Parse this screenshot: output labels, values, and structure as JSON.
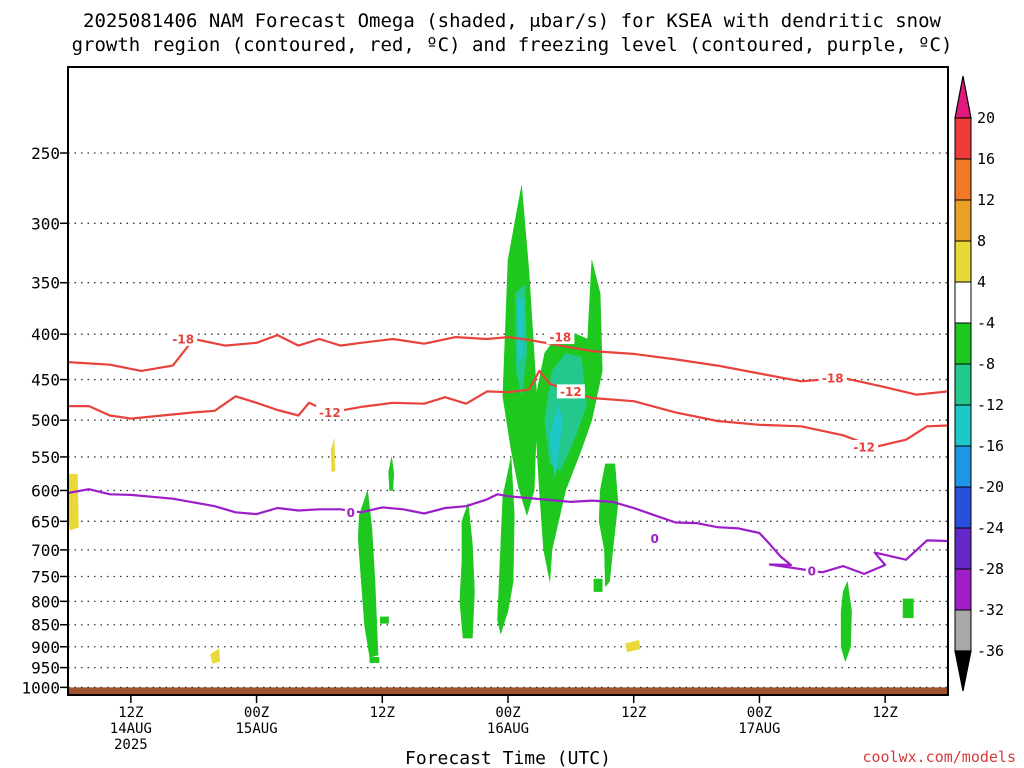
{
  "header": {
    "title_line1": "2025081406 NAM Forecast Omega (shaded, μbar/s) for KSEA with dendritic snow",
    "title_line2": "growth region (contoured, red, ºC) and freezing level (contoured, purple, ºC)"
  },
  "footer": {
    "credit": "coolwx.com/models"
  },
  "chart_data": {
    "type": "heatmap",
    "title": "2025081406 NAM Forecast Omega (shaded, μbar/s) for KSEA with dendritic snow growth region (contoured, red, ºC) and freezing level (contoured, purple, ºC)",
    "xlabel": "Forecast Time (UTC)",
    "ylabel": "",
    "x_hours_range": [
      6,
      90
    ],
    "y_pressure_range": [
      200,
      1020
    ],
    "y_scale": "log-pressure (inverted)",
    "grid": true,
    "y_ticks": [
      250,
      300,
      350,
      400,
      450,
      500,
      550,
      600,
      650,
      700,
      750,
      800,
      850,
      900,
      950,
      1000
    ],
    "x_ticks": [
      {
        "hour": 12,
        "l1": "12Z",
        "l2": "14AUG",
        "l3": "2025"
      },
      {
        "hour": 24,
        "l1": "00Z",
        "l2": "15AUG",
        "l3": ""
      },
      {
        "hour": 36,
        "l1": "12Z",
        "l2": "",
        "l3": ""
      },
      {
        "hour": 48,
        "l1": "00Z",
        "l2": "16AUG",
        "l3": ""
      },
      {
        "hour": 60,
        "l1": "12Z",
        "l2": "",
        "l3": ""
      },
      {
        "hour": 72,
        "l1": "00Z",
        "l2": "17AUG",
        "l3": ""
      },
      {
        "hour": 84,
        "l1": "12Z",
        "l2": "",
        "l3": ""
      }
    ],
    "colorbar": {
      "labels": [
        "20",
        "16",
        "12",
        "8",
        "4",
        "-4",
        "-8",
        "-12",
        "-16",
        "-20",
        "-24",
        "-28",
        "-32",
        "-36"
      ],
      "bins": [
        {
          "color": "#ef3a3a"
        },
        {
          "color": "#f07a28"
        },
        {
          "color": "#e8a028"
        },
        {
          "color": "#e9d83a"
        },
        {
          "color": "#ffffff"
        },
        {
          "color": "#1ec81e"
        },
        {
          "color": "#22c88c"
        },
        {
          "color": "#1ec8c8"
        },
        {
          "color": "#1e96e6"
        },
        {
          "color": "#2850dc"
        },
        {
          "color": "#6428c8"
        },
        {
          "color": "#a01ec8"
        },
        {
          "color": "#a8a8a8"
        }
      ],
      "top_cap_color": "#e0197a",
      "bottom_cap_color": "#000000"
    },
    "ground": {
      "from_pressure": 1000,
      "color": "#a0522d"
    },
    "contours": [
      {
        "label": "-18",
        "color": "#e8423c",
        "label_positions": [
          [
            17,
            405
          ],
          [
            53,
            403
          ],
          [
            79,
            448
          ]
        ],
        "points": [
          [
            6,
            430
          ],
          [
            10,
            433
          ],
          [
            13,
            440
          ],
          [
            16,
            434
          ],
          [
            18,
            405
          ],
          [
            21,
            412
          ],
          [
            24,
            409
          ],
          [
            26,
            401
          ],
          [
            28,
            412
          ],
          [
            30,
            405
          ],
          [
            32,
            412
          ],
          [
            34,
            409
          ],
          [
            37,
            405
          ],
          [
            40,
            410
          ],
          [
            43,
            403
          ],
          [
            46,
            405
          ],
          [
            48,
            403
          ],
          [
            50,
            406
          ],
          [
            53,
            412
          ],
          [
            56,
            418
          ],
          [
            60,
            421
          ],
          [
            64,
            427
          ],
          [
            68,
            434
          ],
          [
            72,
            443
          ],
          [
            76,
            452
          ],
          [
            80,
            448
          ],
          [
            84,
            459
          ],
          [
            87,
            468
          ],
          [
            90,
            464
          ]
        ]
      },
      {
        "label": "-12",
        "color": "#e8423c",
        "label_positions": [
          [
            31,
            490
          ],
          [
            54,
            464
          ],
          [
            82,
            536
          ]
        ],
        "points": [
          [
            6,
            482
          ],
          [
            8,
            482
          ],
          [
            10,
            494
          ],
          [
            12,
            498
          ],
          [
            15,
            494
          ],
          [
            18,
            490
          ],
          [
            20,
            488
          ],
          [
            22,
            470
          ],
          [
            24,
            478
          ],
          [
            26,
            487
          ],
          [
            28,
            494
          ],
          [
            29,
            478
          ],
          [
            31,
            490
          ],
          [
            34,
            483
          ],
          [
            37,
            478
          ],
          [
            40,
            479
          ],
          [
            42,
            471
          ],
          [
            44,
            479
          ],
          [
            46,
            464
          ],
          [
            48,
            465
          ],
          [
            50,
            462
          ],
          [
            51,
            440
          ],
          [
            52,
            455
          ],
          [
            54,
            464
          ],
          [
            56,
            472
          ],
          [
            60,
            476
          ],
          [
            64,
            490
          ],
          [
            68,
            501
          ],
          [
            72,
            506
          ],
          [
            76,
            508
          ],
          [
            80,
            520
          ],
          [
            83,
            536
          ],
          [
            86,
            526
          ],
          [
            88,
            508
          ],
          [
            90,
            507
          ]
        ]
      },
      {
        "label": "0",
        "color": "#9b1ec8",
        "label_positions": [
          [
            33,
            635
          ],
          [
            62,
            680
          ],
          [
            77,
            739
          ]
        ],
        "points": [
          [
            6,
            604
          ],
          [
            8,
            598
          ],
          [
            10,
            606
          ],
          [
            12,
            607
          ],
          [
            16,
            613
          ],
          [
            20,
            625
          ],
          [
            22,
            635
          ],
          [
            24,
            638
          ],
          [
            26,
            628
          ],
          [
            28,
            632
          ],
          [
            30,
            630
          ],
          [
            32,
            630
          ],
          [
            34,
            635
          ],
          [
            36,
            627
          ],
          [
            38,
            630
          ],
          [
            40,
            637
          ],
          [
            42,
            628
          ],
          [
            44,
            625
          ],
          [
            46,
            614
          ],
          [
            47,
            606
          ],
          [
            48,
            609
          ],
          [
            50,
            612
          ],
          [
            52,
            615
          ],
          [
            54,
            618
          ],
          [
            56,
            616
          ],
          [
            58,
            618
          ],
          [
            60,
            628
          ],
          [
            62,
            640
          ],
          [
            64,
            652
          ],
          [
            66,
            653
          ],
          [
            68,
            660
          ],
          [
            70,
            662
          ],
          [
            72,
            670
          ],
          [
            73,
            690
          ],
          [
            74,
            712
          ],
          [
            75,
            728
          ],
          [
            73,
            727
          ],
          [
            75,
            733
          ],
          [
            78,
            742
          ],
          [
            80,
            730
          ],
          [
            82,
            745
          ],
          [
            84,
            728
          ],
          [
            83,
            705
          ],
          [
            86,
            718
          ],
          [
            88,
            683
          ],
          [
            90,
            684
          ]
        ]
      }
    ],
    "omega_regions": [
      {
        "value": -6,
        "color": "#1ec81e",
        "points": [
          [
            47.5,
            470
          ],
          [
            48.0,
            330
          ],
          [
            49.3,
            272
          ],
          [
            50.0,
            340
          ],
          [
            50.8,
            480
          ],
          [
            50.5,
            600
          ],
          [
            49.8,
            640
          ],
          [
            49.0,
            595
          ],
          [
            48.3,
            540
          ]
        ]
      },
      {
        "value": -10,
        "color": "#22c88c",
        "points": [
          [
            48.7,
            360
          ],
          [
            49.6,
            352
          ],
          [
            49.8,
            420
          ],
          [
            49.3,
            470
          ],
          [
            48.8,
            440
          ]
        ]
      },
      {
        "value": -14,
        "color": "#1ec8c8",
        "points": [
          [
            49.0,
            365
          ],
          [
            49.5,
            365
          ],
          [
            49.4,
            420
          ],
          [
            49.0,
            430
          ]
        ]
      },
      {
        "value": -6,
        "color": "#1ec81e",
        "points": [
          [
            50.5,
            480
          ],
          [
            51.5,
            420
          ],
          [
            53.0,
            397
          ],
          [
            54.5,
            400
          ],
          [
            55.6,
            405
          ],
          [
            56.0,
            330
          ],
          [
            56.8,
            360
          ],
          [
            57.0,
            440
          ],
          [
            56.0,
            500
          ],
          [
            55.0,
            540
          ],
          [
            53.5,
            600
          ],
          [
            52.2,
            700
          ],
          [
            52.0,
            760
          ],
          [
            51.4,
            700
          ],
          [
            51.0,
            600
          ]
        ]
      },
      {
        "value": -10,
        "color": "#22c88c",
        "points": [
          [
            51.5,
            500
          ],
          [
            52.2,
            440
          ],
          [
            53.5,
            420
          ],
          [
            55.0,
            425
          ],
          [
            55.5,
            480
          ],
          [
            54.5,
            520
          ],
          [
            53.0,
            570
          ],
          [
            52.0,
            560
          ]
        ]
      },
      {
        "value": -14,
        "color": "#1ec8c8",
        "points": [
          [
            52.0,
            520
          ],
          [
            52.8,
            480
          ],
          [
            53.2,
            500
          ],
          [
            52.5,
            580
          ]
        ]
      },
      {
        "value": -6,
        "color": "#1ec81e",
        "points": [
          [
            47.5,
            610
          ],
          [
            48.3,
            550
          ],
          [
            48.6,
            640
          ],
          [
            48.5,
            760
          ],
          [
            48.0,
            820
          ],
          [
            47.3,
            870
          ],
          [
            47.0,
            840
          ],
          [
            47.2,
            740
          ]
        ]
      },
      {
        "value": -6,
        "color": "#1ec81e",
        "points": [
          [
            56.8,
            600
          ],
          [
            57.3,
            560
          ],
          [
            58.2,
            560
          ],
          [
            58.5,
            620
          ],
          [
            58.0,
            700
          ],
          [
            57.7,
            760
          ],
          [
            57.3,
            770
          ],
          [
            57.2,
            700
          ],
          [
            56.7,
            650
          ]
        ]
      },
      {
        "value": -6,
        "color": "#1ec81e",
        "points": [
          [
            33.8,
            640
          ],
          [
            34.6,
            600
          ],
          [
            35.0,
            660
          ],
          [
            35.3,
            760
          ],
          [
            35.6,
            920
          ],
          [
            34.8,
            925
          ],
          [
            34.3,
            850
          ],
          [
            34.0,
            760
          ],
          [
            33.7,
            680
          ]
        ]
      },
      {
        "value": -6,
        "color": "#1ec81e",
        "points": [
          [
            43.6,
            650
          ],
          [
            44.2,
            620
          ],
          [
            44.6,
            690
          ],
          [
            44.8,
            780
          ],
          [
            44.6,
            880
          ],
          [
            43.7,
            880
          ],
          [
            43.4,
            800
          ],
          [
            43.6,
            720
          ]
        ]
      },
      {
        "value": -6,
        "color": "#1ec81e",
        "points": [
          [
            36.6,
            572
          ],
          [
            36.9,
            550
          ],
          [
            37.1,
            575
          ],
          [
            37.0,
            600
          ],
          [
            36.7,
            600
          ]
        ]
      },
      {
        "value": -6,
        "color": "#1ec81e",
        "points": [
          [
            80.0,
            780
          ],
          [
            80.4,
            760
          ],
          [
            80.8,
            820
          ],
          [
            80.7,
            900
          ],
          [
            80.2,
            935
          ],
          [
            79.8,
            900
          ],
          [
            79.8,
            820
          ]
        ]
      },
      {
        "value": -6,
        "color": "#1ec81e",
        "points": [
          [
            85.7,
            795
          ],
          [
            86.7,
            795
          ],
          [
            86.7,
            835
          ],
          [
            85.7,
            835
          ]
        ]
      },
      {
        "value": -6,
        "color": "#1ec81e",
        "points": [
          [
            56.2,
            755
          ],
          [
            57.0,
            755
          ],
          [
            57.0,
            780
          ],
          [
            56.2,
            780
          ]
        ]
      },
      {
        "value": -6,
        "color": "#1ec81e",
        "points": [
          [
            35.8,
            833
          ],
          [
            36.6,
            833
          ],
          [
            36.6,
            847
          ],
          [
            35.8,
            847
          ]
        ]
      },
      {
        "value": -6,
        "color": "#1ec81e",
        "points": [
          [
            34.8,
            925
          ],
          [
            35.7,
            925
          ],
          [
            35.7,
            938
          ],
          [
            34.8,
            938
          ]
        ]
      },
      {
        "value": 6,
        "color": "#e9d83a",
        "points": [
          [
            6.0,
            575
          ],
          [
            6.9,
            575
          ],
          [
            7.0,
            660
          ],
          [
            6.2,
            665
          ],
          [
            6.0,
            640
          ]
        ]
      },
      {
        "value": 6,
        "color": "#e9d83a",
        "points": [
          [
            31.1,
            540
          ],
          [
            31.4,
            525
          ],
          [
            31.5,
            570
          ],
          [
            31.2,
            572
          ]
        ]
      },
      {
        "value": 6,
        "color": "#e9d83a",
        "points": [
          [
            19.6,
            918
          ],
          [
            20.4,
            905
          ],
          [
            20.5,
            935
          ],
          [
            19.8,
            940
          ]
        ]
      },
      {
        "value": 6,
        "color": "#e9d83a",
        "points": [
          [
            59.2,
            893
          ],
          [
            60.5,
            885
          ],
          [
            60.6,
            905
          ],
          [
            59.4,
            912
          ]
        ]
      }
    ]
  }
}
